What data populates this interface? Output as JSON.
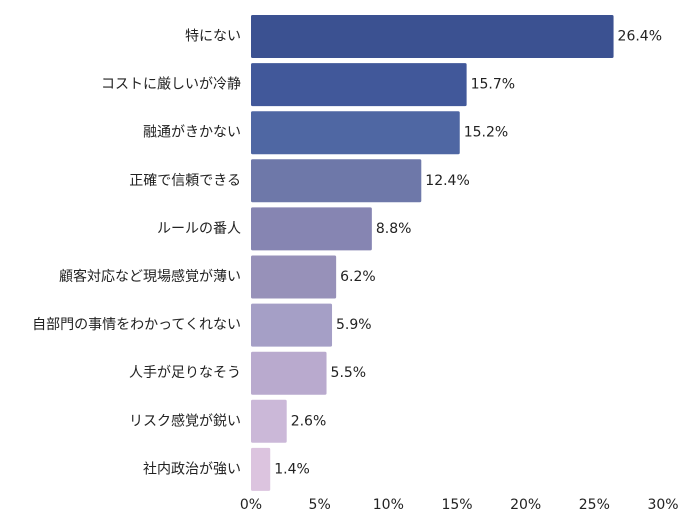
{
  "chart_data": {
    "type": "bar",
    "orientation": "horizontal",
    "title": "",
    "xlabel": "",
    "ylabel": "",
    "categories": [
      "特にない",
      "コストに厳しいが冷静",
      "融通がきかない",
      "正確で信頼できる",
      "ルールの番人",
      "顧客対応など現場感覚が薄い",
      "自部門の事情をわかってくれない",
      "人手が足りなそう",
      "リスク感覚が鋭い",
      "社内政治が強い"
    ],
    "values": [
      26.4,
      15.7,
      15.2,
      12.4,
      8.8,
      6.2,
      5.9,
      5.5,
      2.6,
      1.4
    ],
    "value_labels": [
      "26.4%",
      "15.7%",
      "15.2%",
      "12.4%",
      "8.8%",
      "6.2%",
      "5.9%",
      "5.5%",
      "2.6%",
      "1.4%"
    ],
    "bar_colors": [
      "#3b5191",
      "#41589a",
      "#4f67a3",
      "#6e78a9",
      "#8685b2",
      "#9791b9",
      "#a59fc6",
      "#b9aace",
      "#cbb8d8",
      "#dcc4df"
    ],
    "xlim": [
      0,
      30
    ],
    "xticks": [
      0,
      5,
      10,
      15,
      20,
      25,
      30
    ],
    "xtick_labels": [
      "0%",
      "5%",
      "10%",
      "15%",
      "20%",
      "25%",
      "30%"
    ],
    "grid": false,
    "legend": "none"
  }
}
